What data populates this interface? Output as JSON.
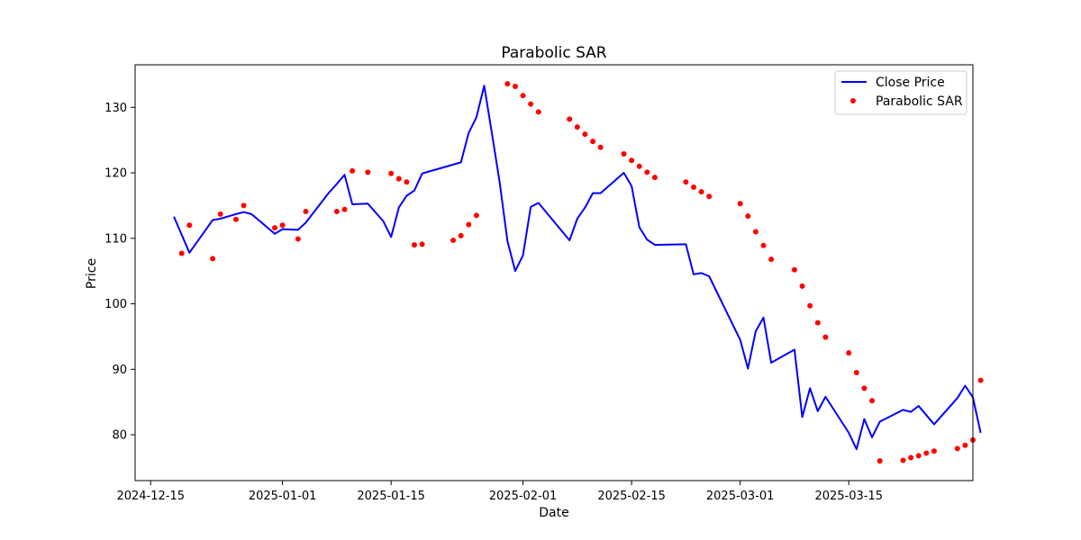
{
  "chart_data": {
    "type": "line",
    "title": "Parabolic SAR",
    "xlabel": "Date",
    "ylabel": "Price",
    "xlim": [
      "2024-12-13",
      "2025-03-31"
    ],
    "ylim": [
      73,
      136.5
    ],
    "x_ticks": [
      "2024-12-15",
      "2025-01-01",
      "2025-01-15",
      "2025-02-01",
      "2025-02-15",
      "2025-03-01",
      "2025-03-15"
    ],
    "y_ticks": [
      80,
      90,
      100,
      110,
      120,
      130
    ],
    "legend_position": "top-right",
    "grid": false,
    "series": [
      {
        "name": "Close Price",
        "kind": "line",
        "color": "#0000ff",
        "points": [
          [
            "2024-12-18",
            113.3
          ],
          [
            "2024-12-20",
            107.8
          ],
          [
            "2024-12-23",
            112.8
          ],
          [
            "2024-12-24",
            113.0
          ],
          [
            "2024-12-26",
            113.7
          ],
          [
            "2024-12-27",
            114.0
          ],
          [
            "2024-12-28",
            113.7
          ],
          [
            "2024-12-31",
            110.7
          ],
          [
            "2025-01-01",
            111.4
          ],
          [
            "2025-01-03",
            111.3
          ],
          [
            "2025-01-04",
            112.4
          ],
          [
            "2025-01-07",
            117.0
          ],
          [
            "2025-01-08",
            118.3
          ],
          [
            "2025-01-09",
            119.7
          ],
          [
            "2025-01-10",
            115.2
          ],
          [
            "2025-01-12",
            115.3
          ],
          [
            "2025-01-14",
            112.6
          ],
          [
            "2025-01-15",
            110.2
          ],
          [
            "2025-01-16",
            114.7
          ],
          [
            "2025-01-17",
            116.5
          ],
          [
            "2025-01-18",
            117.3
          ],
          [
            "2025-01-19",
            119.9
          ],
          [
            "2025-01-24",
            121.6
          ],
          [
            "2025-01-25",
            126.1
          ],
          [
            "2025-01-26",
            128.5
          ],
          [
            "2025-01-27",
            133.3
          ],
          [
            "2025-01-28",
            126.0
          ],
          [
            "2025-01-29",
            118.5
          ],
          [
            "2025-01-30",
            109.6
          ],
          [
            "2025-01-31",
            105.0
          ],
          [
            "2025-02-01",
            107.4
          ],
          [
            "2025-02-02",
            114.8
          ],
          [
            "2025-02-03",
            115.4
          ],
          [
            "2025-02-07",
            109.7
          ],
          [
            "2025-02-08",
            113.0
          ],
          [
            "2025-02-09",
            114.7
          ],
          [
            "2025-02-10",
            116.9
          ],
          [
            "2025-02-11",
            116.9
          ],
          [
            "2025-02-14",
            120.0
          ],
          [
            "2025-02-15",
            118.0
          ],
          [
            "2025-02-16",
            111.7
          ],
          [
            "2025-02-17",
            109.8
          ],
          [
            "2025-02-18",
            109.0
          ],
          [
            "2025-02-22",
            109.1
          ],
          [
            "2025-02-23",
            104.5
          ],
          [
            "2025-02-24",
            104.7
          ],
          [
            "2025-02-25",
            104.2
          ],
          [
            "2025-03-01",
            94.5
          ],
          [
            "2025-03-02",
            90.1
          ],
          [
            "2025-03-03",
            95.8
          ],
          [
            "2025-03-04",
            97.9
          ],
          [
            "2025-03-05",
            91.0
          ],
          [
            "2025-03-08",
            93.0
          ],
          [
            "2025-03-09",
            82.7
          ],
          [
            "2025-03-10",
            87.1
          ],
          [
            "2025-03-11",
            83.6
          ],
          [
            "2025-03-12",
            85.8
          ],
          [
            "2025-03-15",
            80.3
          ],
          [
            "2025-03-16",
            77.8
          ],
          [
            "2025-03-17",
            82.4
          ],
          [
            "2025-03-18",
            79.6
          ],
          [
            "2025-03-19",
            82.0
          ],
          [
            "2025-03-22",
            83.8
          ],
          [
            "2025-03-23",
            83.5
          ],
          [
            "2025-03-24",
            84.4
          ],
          [
            "2025-03-26",
            81.6
          ],
          [
            "2025-03-29",
            85.6
          ],
          [
            "2025-03-30",
            87.5
          ],
          [
            "2025-03-31",
            85.7
          ],
          [
            "2025-04-01",
            80.3
          ]
        ]
      },
      {
        "name": "Parabolic SAR",
        "kind": "scatter",
        "color": "#ff0000",
        "points": [
          [
            "2024-12-19",
            107.7
          ],
          [
            "2024-12-20",
            112.0
          ],
          [
            "2024-12-23",
            106.9
          ],
          [
            "2024-12-24",
            113.7
          ],
          [
            "2024-12-26",
            112.9
          ],
          [
            "2024-12-27",
            115.0
          ],
          [
            "2024-12-31",
            111.6
          ],
          [
            "2025-01-01",
            112.0
          ],
          [
            "2025-01-03",
            109.9
          ],
          [
            "2025-01-04",
            114.1
          ],
          [
            "2025-01-08",
            114.1
          ],
          [
            "2025-01-09",
            114.4
          ],
          [
            "2025-01-10",
            120.3
          ],
          [
            "2025-01-12",
            120.1
          ],
          [
            "2025-01-15",
            119.9
          ],
          [
            "2025-01-16",
            119.1
          ],
          [
            "2025-01-17",
            118.6
          ],
          [
            "2025-01-18",
            109.0
          ],
          [
            "2025-01-19",
            109.1
          ],
          [
            "2025-01-23",
            109.7
          ],
          [
            "2025-01-24",
            110.4
          ],
          [
            "2025-01-25",
            112.1
          ],
          [
            "2025-01-26",
            113.5
          ],
          [
            "2025-01-30",
            133.6
          ],
          [
            "2025-01-31",
            133.2
          ],
          [
            "2025-02-01",
            131.8
          ],
          [
            "2025-02-02",
            130.5
          ],
          [
            "2025-02-03",
            129.3
          ],
          [
            "2025-02-07",
            128.2
          ],
          [
            "2025-02-08",
            127.0
          ],
          [
            "2025-02-09",
            125.9
          ],
          [
            "2025-02-10",
            124.8
          ],
          [
            "2025-02-11",
            123.9
          ],
          [
            "2025-02-14",
            122.9
          ],
          [
            "2025-02-15",
            121.9
          ],
          [
            "2025-02-16",
            121.0
          ],
          [
            "2025-02-17",
            120.1
          ],
          [
            "2025-02-18",
            119.3
          ],
          [
            "2025-02-22",
            118.6
          ],
          [
            "2025-02-23",
            117.8
          ],
          [
            "2025-02-24",
            117.1
          ],
          [
            "2025-02-25",
            116.4
          ],
          [
            "2025-03-01",
            115.3
          ],
          [
            "2025-03-02",
            113.4
          ],
          [
            "2025-03-03",
            111.0
          ],
          [
            "2025-03-04",
            108.9
          ],
          [
            "2025-03-05",
            106.8
          ],
          [
            "2025-03-08",
            105.2
          ],
          [
            "2025-03-09",
            102.7
          ],
          [
            "2025-03-10",
            99.7
          ],
          [
            "2025-03-11",
            97.1
          ],
          [
            "2025-03-12",
            94.9
          ],
          [
            "2025-03-15",
            92.5
          ],
          [
            "2025-03-16",
            89.5
          ],
          [
            "2025-03-17",
            87.1
          ],
          [
            "2025-03-18",
            85.2
          ],
          [
            "2025-03-19",
            76.0
          ],
          [
            "2025-03-22",
            76.1
          ],
          [
            "2025-03-23",
            76.5
          ],
          [
            "2025-03-24",
            76.8
          ],
          [
            "2025-03-25",
            77.2
          ],
          [
            "2025-03-26",
            77.5
          ],
          [
            "2025-03-29",
            77.9
          ],
          [
            "2025-03-30",
            78.4
          ],
          [
            "2025-03-31",
            79.2
          ],
          [
            "2025-04-01",
            88.3
          ]
        ]
      }
    ]
  }
}
